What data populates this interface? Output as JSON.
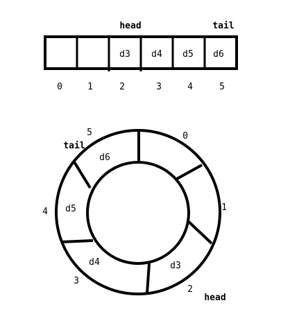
{
  "linear": {
    "head_label": "head",
    "tail_label": "tail",
    "cells": [
      "",
      "",
      "d3",
      "d4",
      "d5",
      "d6"
    ],
    "indices": [
      "0",
      "1",
      "2",
      "3",
      "4",
      "5"
    ]
  },
  "ring": {
    "head_label": "head",
    "tail_label": "tail",
    "segments": [
      {
        "index": "0",
        "value": ""
      },
      {
        "index": "1",
        "value": ""
      },
      {
        "index": "2",
        "value": "d3"
      },
      {
        "index": "3",
        "value": "d4"
      },
      {
        "index": "4",
        "value": "d5"
      },
      {
        "index": "5",
        "value": "d6"
      }
    ]
  }
}
